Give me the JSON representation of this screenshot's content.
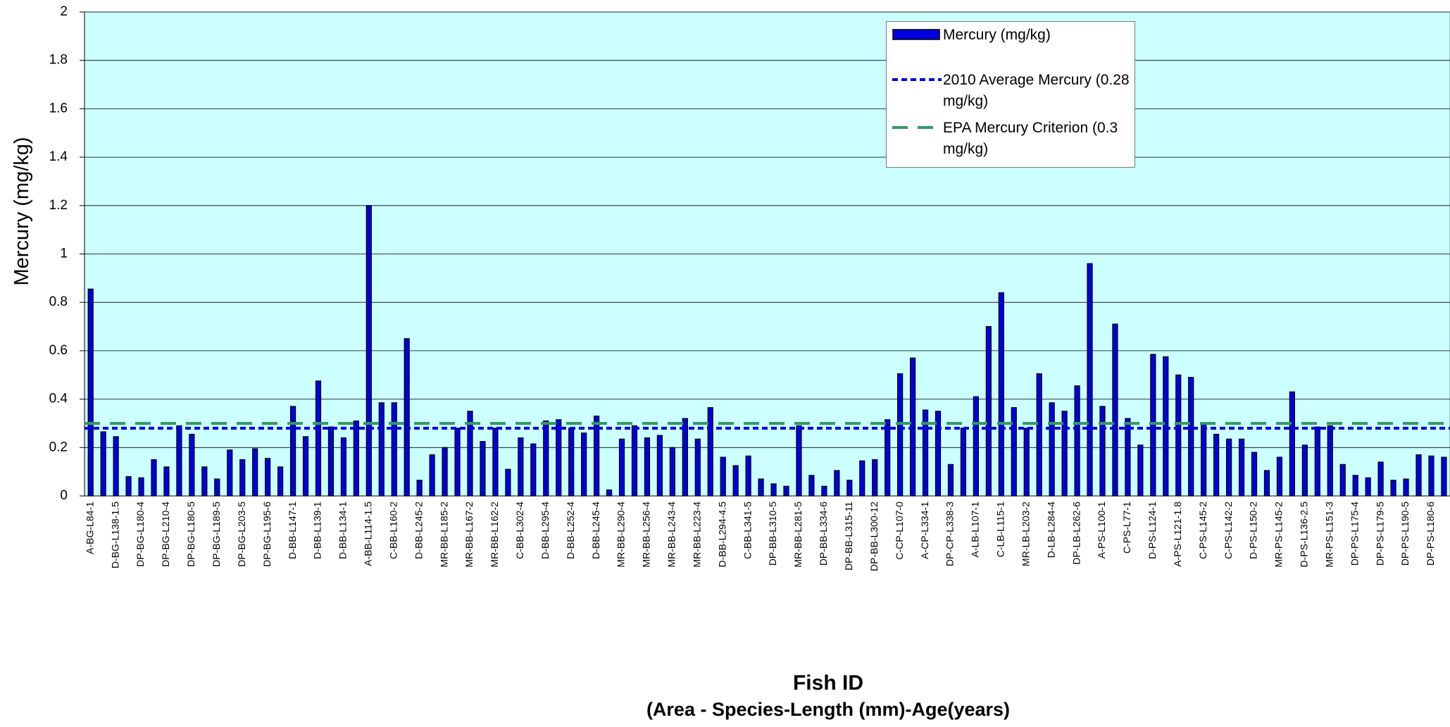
{
  "chart_data": {
    "type": "bar",
    "y_label": "Mercury (mg/kg)",
    "x_label": "Fish ID",
    "x_sublabel": "(Area - Species-Length (mm)-Age(years)",
    "categories": [
      "A-BG-L84-1",
      null,
      "D-BG-L138-1.5",
      null,
      "DP-BG-L180-4",
      null,
      "DP-BG-L210-4",
      null,
      "DP-BG-L180-5",
      null,
      "DP-BG-L189-5",
      null,
      "DP-BG-L203-5",
      null,
      "DP-BG-L195-6",
      null,
      "D-BB-L147-1",
      null,
      "D-BB-L139-1",
      null,
      "D-BB-L134-1",
      null,
      "A-BB-L114-1.5",
      null,
      "C-BB-L160-2",
      null,
      "D-BB-L245-2",
      null,
      "MR-BB-L185-2",
      null,
      "MR-BB-L167-2",
      null,
      "MR-BB-L162-2",
      null,
      "C-BB-L302-4",
      null,
      "D-BB-L295-4",
      null,
      "D-BB-L252-4",
      null,
      "D-BB-L245-4",
      null,
      "MR-BB-L290-4",
      null,
      "MR-BB-L256-4",
      null,
      "MR-BB-L243-4",
      null,
      "MR-BB-L223-4",
      null,
      "D-BB-L294-4.5",
      null,
      "C-BB-L341-5",
      null,
      "DP-BB-L310-5",
      null,
      "MR-BB-L281-5",
      null,
      "DP-BB-L334-6",
      null,
      "DP-BB-L315-11",
      null,
      "DP-BB-L300-12",
      null,
      "C-CP-L107-0",
      null,
      "A-CP-L334-1",
      null,
      "DP-CP-L338-3",
      null,
      "A-LB-L107-1",
      null,
      "C-LB-L115-1",
      null,
      "MR-LB-L203-2",
      null,
      "D-LB-L284-4",
      null,
      "DP-LB-L262-6",
      null,
      "A-PS-L100-1",
      null,
      "C-PS-L77-1",
      null,
      "D-PS-L124-1",
      null,
      "A-PS-L121-1.8",
      null,
      "C-PS-L145-2",
      null,
      "C-PS-L142-2",
      null,
      "D-PS-L150-2",
      null,
      "MR-PS-L145-2",
      null,
      "D-PS-L136-2.5",
      null,
      "MR-PS-L151-3",
      null,
      "DP-PS-L175-4",
      null,
      "DP-PS-L179-5",
      null,
      "DP-PS-L190-5",
      null,
      "DP-PS-L180-6",
      null
    ],
    "series": [
      {
        "name": "Mercury (mg/kg)",
        "color": "#0000e0",
        "values": [
          0.855,
          0.265,
          0.245,
          0.08,
          0.075,
          0.15,
          0.12,
          0.29,
          0.255,
          0.12,
          0.07,
          0.19,
          0.15,
          0.195,
          0.155,
          0.12,
          0.37,
          0.245,
          0.475,
          0.285,
          0.24,
          0.31,
          1.2,
          0.385,
          0.385,
          0.65,
          0.065,
          0.17,
          0.2,
          0.28,
          0.35,
          0.225,
          0.28,
          0.11,
          0.24,
          0.215,
          0.31,
          0.315,
          0.28,
          0.26,
          0.33,
          0.025,
          0.235,
          0.29,
          0.24,
          0.25,
          0.2,
          0.32,
          0.235,
          0.365,
          0.16,
          0.125,
          0.165,
          0.07,
          0.05,
          0.04,
          0.29,
          0.085,
          0.04,
          0.105,
          0.065,
          0.145,
          0.15,
          0.315,
          0.505,
          0.57,
          0.355,
          0.35,
          0.13,
          0.28,
          0.41,
          0.7,
          0.84,
          0.365,
          0.28,
          0.505,
          0.385,
          0.35,
          0.455,
          0.96,
          0.37,
          0.71,
          0.32,
          0.21,
          0.585,
          0.575,
          0.5,
          0.49,
          0.3,
          0.255,
          0.235,
          0.235,
          0.18,
          0.105,
          0.16,
          0.43,
          0.21,
          0.285,
          0.29,
          0.13,
          0.085,
          0.075,
          0.14,
          0.065,
          0.07,
          0.17,
          0.165,
          0.16
        ]
      }
    ],
    "reference_lines": [
      {
        "name": "2010 Average Mercury (0.28 mg/kg)",
        "value": 0.28,
        "color": "#0000e0",
        "dash": "short"
      },
      {
        "name": "EPA Mercury Criterion (0.3 mg/kg)",
        "value": 0.3,
        "color": "#339966",
        "dash": "long"
      }
    ],
    "ylim": [
      0,
      2
    ],
    "yticks": [
      0,
      0.2,
      0.4,
      0.6,
      0.8,
      1,
      1.2,
      1.4,
      1.6,
      1.8,
      2
    ],
    "grid": true,
    "background": "#ccffff",
    "legend": "upper right"
  }
}
